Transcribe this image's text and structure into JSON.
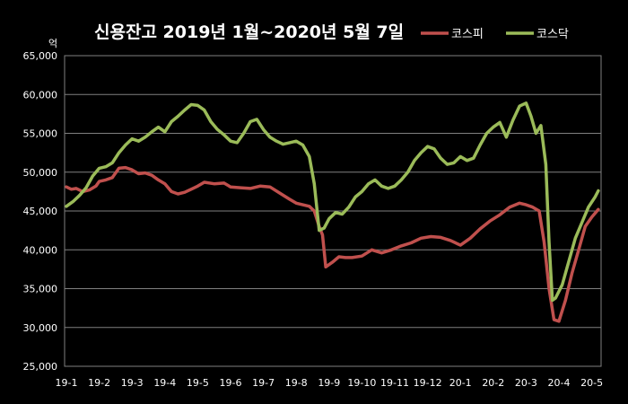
{
  "chart_data": {
    "type": "line",
    "title": "신용잔고 2019년 1월~2020년 5월 7일",
    "unit_label": "억",
    "xlabel": "",
    "ylabel": "",
    "ylim": [
      25000,
      65000
    ],
    "y_ticks": [
      "25,000",
      "30,000",
      "35,000",
      "40,000",
      "45,000",
      "50,000",
      "55,000",
      "60,000",
      "65,000"
    ],
    "y_tick_values": [
      25000,
      30000,
      35000,
      40000,
      45000,
      50000,
      55000,
      60000,
      65000
    ],
    "x_ticks": [
      "19-1",
      "19-2",
      "19-3",
      "19-4",
      "19-5",
      "19-6",
      "19-7",
      "19-8",
      "19-9",
      "19-10",
      "19-11",
      "19-12",
      "20-1",
      "20-2",
      "20-3",
      "20-4",
      "20-5"
    ],
    "grid": "horizontal",
    "legend_position": "top-right",
    "x_range": [
      0,
      16.2
    ],
    "series": [
      {
        "name": "코스피",
        "color": "#c0504d",
        "x": [
          0,
          0.15,
          0.3,
          0.5,
          0.7,
          0.9,
          1.0,
          1.2,
          1.4,
          1.6,
          1.8,
          2.0,
          2.2,
          2.4,
          2.6,
          2.8,
          3.0,
          3.2,
          3.4,
          3.6,
          3.8,
          4.0,
          4.2,
          4.5,
          4.8,
          5.0,
          5.3,
          5.6,
          5.9,
          6.2,
          6.5,
          6.8,
          7.0,
          7.2,
          7.4,
          7.55,
          7.7,
          7.8,
          7.9,
          8.1,
          8.3,
          8.5,
          8.7,
          9.0,
          9.3,
          9.6,
          9.9,
          10.2,
          10.5,
          10.8,
          11.1,
          11.4,
          11.7,
          12.0,
          12.3,
          12.6,
          12.9,
          13.2,
          13.5,
          13.8,
          14.0,
          14.2,
          14.4,
          14.55,
          14.7,
          14.85,
          15.0,
          15.2,
          15.4,
          15.6,
          15.8,
          16.0,
          16.2
        ],
        "values": [
          48100,
          47800,
          47900,
          47500,
          47700,
          48200,
          48800,
          49000,
          49300,
          50500,
          50600,
          50300,
          49800,
          49900,
          49600,
          49000,
          48500,
          47500,
          47200,
          47400,
          47800,
          48200,
          48700,
          48500,
          48600,
          48100,
          48000,
          47900,
          48200,
          48100,
          47300,
          46500,
          46000,
          45800,
          45600,
          45000,
          43000,
          41900,
          37800,
          38400,
          39100,
          39000,
          39000,
          39200,
          40000,
          39600,
          40000,
          40500,
          40900,
          41500,
          41700,
          41600,
          41200,
          40600,
          41500,
          42700,
          43700,
          44500,
          45500,
          46000,
          45800,
          45500,
          45000,
          41000,
          35000,
          31000,
          30800,
          33500,
          37000,
          40000,
          43000,
          44200,
          45200
        ]
      },
      {
        "name": "코스닥",
        "color": "#9bbb59",
        "x": [
          0,
          0.2,
          0.4,
          0.6,
          0.8,
          1.0,
          1.2,
          1.4,
          1.6,
          1.8,
          2.0,
          2.2,
          2.4,
          2.6,
          2.8,
          3.0,
          3.2,
          3.4,
          3.6,
          3.8,
          4.0,
          4.2,
          4.4,
          4.6,
          4.8,
          5.0,
          5.2,
          5.4,
          5.6,
          5.8,
          6.0,
          6.2,
          6.4,
          6.6,
          6.8,
          7.0,
          7.2,
          7.4,
          7.55,
          7.7,
          7.85,
          8.0,
          8.2,
          8.4,
          8.6,
          8.8,
          9.0,
          9.2,
          9.4,
          9.6,
          9.8,
          10.0,
          10.2,
          10.4,
          10.6,
          10.8,
          11.0,
          11.2,
          11.4,
          11.6,
          11.8,
          12.0,
          12.2,
          12.4,
          12.6,
          12.8,
          13.0,
          13.2,
          13.4,
          13.6,
          13.8,
          14.0,
          14.15,
          14.3,
          14.45,
          14.6,
          14.7,
          14.8,
          14.9,
          15.1,
          15.3,
          15.5,
          15.7,
          15.9,
          16.1,
          16.2
        ],
        "values": [
          45600,
          46200,
          47000,
          48000,
          49500,
          50500,
          50700,
          51200,
          52500,
          53500,
          54300,
          54000,
          54500,
          55200,
          55800,
          55200,
          56500,
          57200,
          58000,
          58700,
          58600,
          58000,
          56500,
          55500,
          54800,
          54000,
          53800,
          55000,
          56500,
          56800,
          55500,
          54500,
          54000,
          53600,
          53800,
          54000,
          53500,
          52000,
          48500,
          42500,
          42800,
          44000,
          44800,
          44600,
          45500,
          46800,
          47500,
          48500,
          49000,
          48200,
          47900,
          48200,
          49000,
          50000,
          51500,
          52500,
          53300,
          53000,
          51800,
          51000,
          51200,
          52000,
          51500,
          51800,
          53500,
          55000,
          55800,
          56400,
          54500,
          56700,
          58500,
          58900,
          57200,
          55000,
          56000,
          51000,
          41000,
          33500,
          33800,
          35500,
          38500,
          41500,
          43500,
          45500,
          46800,
          47600
        ]
      }
    ]
  }
}
